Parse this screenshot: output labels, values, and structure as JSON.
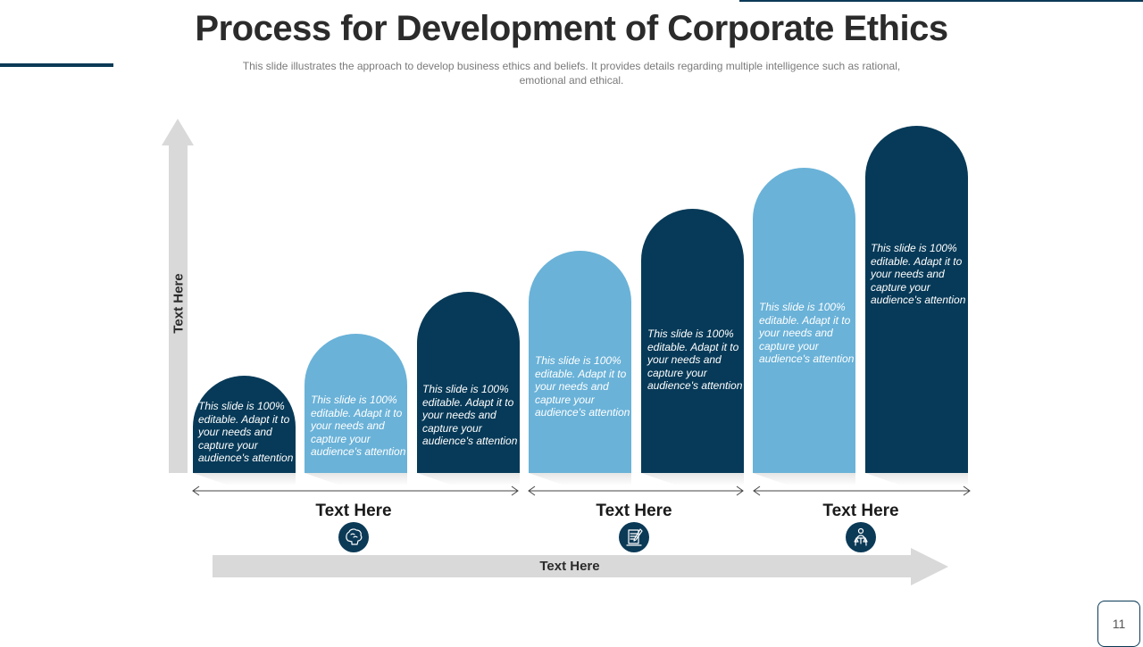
{
  "title": "Process for Development of Corporate Ethics",
  "subtitle": "This slide illustrates the approach to develop business ethics and beliefs. It provides details regarding multiple intelligence such as rational, emotional and ethical.",
  "vertical_axis_label": "Text Here",
  "horizontal_axis_label": "Text Here",
  "page_number": "11",
  "colors": {
    "dark": "#073a58",
    "light": "#6ab2d8",
    "arrow": "#d9d9d9"
  },
  "steps": [
    {
      "text": "This slide is 100% editable. Adapt it to your needs and capture your audience's attention",
      "level": 1,
      "color": "dark"
    },
    {
      "text": "This slide is 100% editable. Adapt it to your needs and capture your audience's attention",
      "level": 2,
      "color": "light"
    },
    {
      "text": "This slide is 100% editable. Adapt it to your needs and capture your audience's attention",
      "level": 3,
      "color": "dark"
    },
    {
      "text": "This slide is 100% editable. Adapt it to your needs and capture your audience's attention",
      "level": 4,
      "color": "light"
    },
    {
      "text": "This slide is 100% editable. Adapt it to your needs and capture your audience's attention",
      "level": 5,
      "color": "dark"
    },
    {
      "text": "This slide is 100% editable. Adapt it to your needs and capture your audience's attention",
      "level": 6,
      "color": "light"
    },
    {
      "text": "This slide is 100% editable. Adapt it to your needs and capture your audience's attention",
      "level": 7,
      "color": "dark"
    }
  ],
  "groups": [
    {
      "label": "Text Here",
      "icon": "brain-head-icon"
    },
    {
      "label": "Text Here",
      "icon": "document-pen-icon"
    },
    {
      "label": "Text Here",
      "icon": "justice-scales-person-icon"
    }
  ]
}
